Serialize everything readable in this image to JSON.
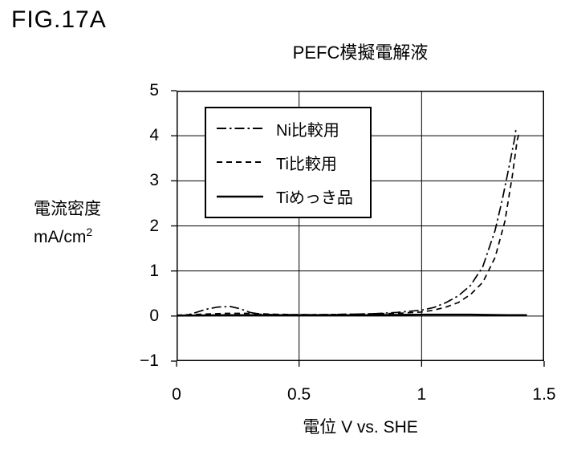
{
  "figure_label": "FIG.17A",
  "colors": {
    "line": "#000000",
    "background": "#ffffff"
  },
  "chart_data": {
    "type": "line",
    "title": "PEFC模擬電解液",
    "xlabel": "電位 V vs. SHE",
    "ylabel": "電流密度",
    "ylabel_unit": "mA/cm",
    "ylabel_unit_exponent": "2",
    "xlim": [
      0,
      1.5
    ],
    "ylim": [
      -1,
      5
    ],
    "x_ticks": [
      0,
      0.5,
      1,
      1.5
    ],
    "x_tick_labels": [
      "0",
      "0.5",
      "1",
      "1.5"
    ],
    "y_ticks": [
      5,
      4,
      3,
      2,
      1,
      0,
      -1
    ],
    "y_tick_labels": [
      "5",
      "4",
      "3",
      "2",
      "1",
      "0",
      "−1"
    ],
    "grid": true,
    "legend_position": "upper-left-inside",
    "series": [
      {
        "name": "Ni比較用",
        "line_style": "dash-dot",
        "color": "#000000",
        "points": [
          [
            0,
            0.0
          ],
          [
            0.05,
            0.03
          ],
          [
            0.08,
            0.08
          ],
          [
            0.12,
            0.15
          ],
          [
            0.17,
            0.2
          ],
          [
            0.22,
            0.21
          ],
          [
            0.26,
            0.16
          ],
          [
            0.3,
            0.08
          ],
          [
            0.34,
            0.04
          ],
          [
            0.4,
            0.03
          ],
          [
            0.5,
            0.03
          ],
          [
            0.6,
            0.03
          ],
          [
            0.7,
            0.04
          ],
          [
            0.8,
            0.05
          ],
          [
            0.9,
            0.08
          ],
          [
            1.0,
            0.13
          ],
          [
            1.05,
            0.19
          ],
          [
            1.1,
            0.3
          ],
          [
            1.15,
            0.45
          ],
          [
            1.2,
            0.68
          ],
          [
            1.25,
            1.1
          ],
          [
            1.3,
            1.9
          ],
          [
            1.33,
            2.6
          ],
          [
            1.36,
            3.4
          ],
          [
            1.38,
            3.95
          ],
          [
            1.385,
            4.15
          ]
        ]
      },
      {
        "name": "Ti比較用",
        "line_style": "dashed",
        "color": "#000000",
        "points": [
          [
            0,
            0.02
          ],
          [
            0.1,
            0.04
          ],
          [
            0.2,
            0.06
          ],
          [
            0.3,
            0.06
          ],
          [
            0.4,
            0.04
          ],
          [
            0.5,
            0.03
          ],
          [
            0.6,
            0.03
          ],
          [
            0.7,
            0.04
          ],
          [
            0.8,
            0.05
          ],
          [
            0.9,
            0.06
          ],
          [
            1.0,
            0.09
          ],
          [
            1.05,
            0.13
          ],
          [
            1.1,
            0.2
          ],
          [
            1.15,
            0.3
          ],
          [
            1.2,
            0.48
          ],
          [
            1.25,
            0.75
          ],
          [
            1.3,
            1.3
          ],
          [
            1.34,
            2.1
          ],
          [
            1.37,
            3.1
          ],
          [
            1.39,
            3.9
          ],
          [
            1.4,
            4.1
          ]
        ]
      },
      {
        "name": "Tiめっき品",
        "line_style": "solid",
        "color": "#000000",
        "points": [
          [
            0,
            0.01
          ],
          [
            0.2,
            0.02
          ],
          [
            0.4,
            0.02
          ],
          [
            0.6,
            0.02
          ],
          [
            0.8,
            0.02
          ],
          [
            1.0,
            0.03
          ],
          [
            1.2,
            0.03
          ],
          [
            1.35,
            0.02
          ],
          [
            1.43,
            0.02
          ]
        ]
      }
    ]
  }
}
